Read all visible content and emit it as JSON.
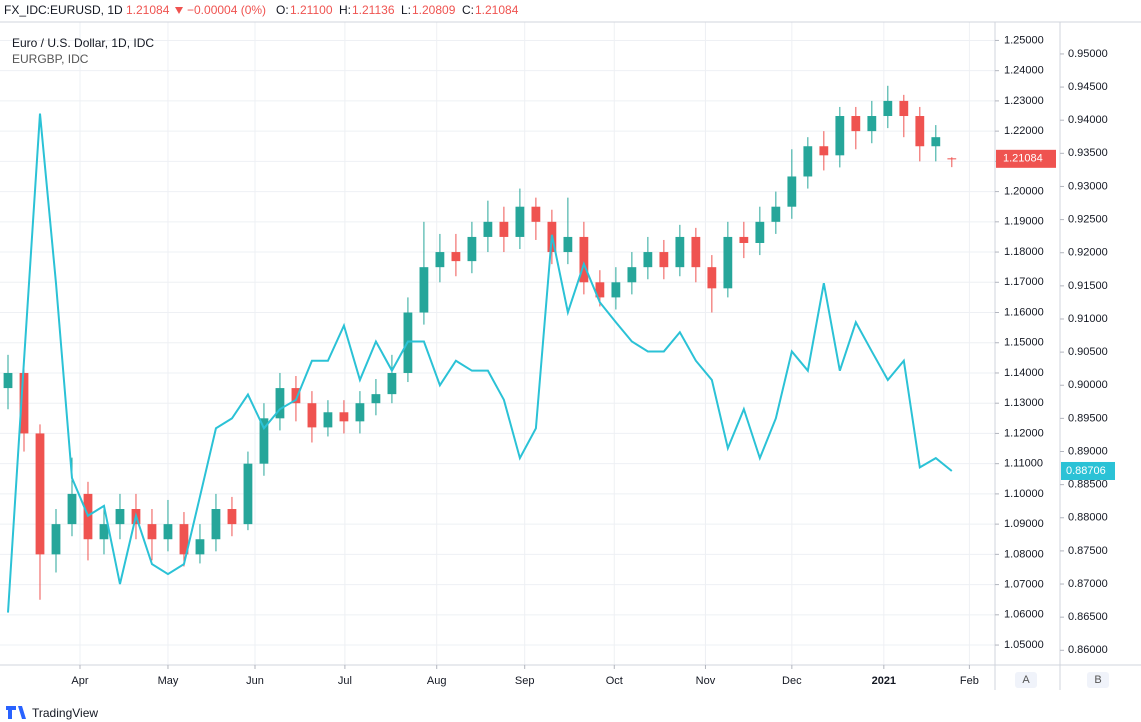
{
  "header": {
    "symbol": "FX_IDC:EURUSD, 1D",
    "last": "1.21084",
    "change": "−0.00004 (0%)",
    "open_label": "O:",
    "open": "1.21100",
    "high_label": "H:",
    "high": "1.21136",
    "low_label": "L:",
    "low": "1.20809",
    "close_label": "C:",
    "close": "1.21084"
  },
  "footer": {
    "brand": "TradingView"
  },
  "chart_data": {
    "type": "candlestick",
    "axis_names": [
      "A",
      "B"
    ],
    "xlim": [
      -0.5,
      61.7
    ],
    "xticks": [
      {
        "value": 4.5,
        "label": "Apr"
      },
      {
        "value": 10,
        "label": "May"
      },
      {
        "value": 15.44,
        "label": "Jun"
      },
      {
        "value": 21.06,
        "label": "Jul"
      },
      {
        "value": 26.8,
        "label": "Aug"
      },
      {
        "value": 32.3,
        "label": "Sep"
      },
      {
        "value": 37.9,
        "label": "Oct"
      },
      {
        "value": 43.6,
        "label": "Nov"
      },
      {
        "value": 49,
        "label": "Dec"
      },
      {
        "value": 54.75,
        "label": "2021"
      },
      {
        "value": 60.1,
        "label": "Feb"
      }
    ],
    "ylim": [
      1.0434,
      1.2561
    ],
    "yticks": [
      {
        "value": 1.05,
        "label": "1.05000"
      },
      {
        "value": 1.06,
        "label": "1.06000"
      },
      {
        "value": 1.07,
        "label": "1.07000"
      },
      {
        "value": 1.08,
        "label": "1.08000"
      },
      {
        "value": 1.09,
        "label": "1.09000"
      },
      {
        "value": 1.1,
        "label": "1.10000"
      },
      {
        "value": 1.11,
        "label": "1.11000"
      },
      {
        "value": 1.12,
        "label": "1.12000"
      },
      {
        "value": 1.13,
        "label": "1.13000"
      },
      {
        "value": 1.14,
        "label": "1.14000"
      },
      {
        "value": 1.15,
        "label": "1.15000"
      },
      {
        "value": 1.16,
        "label": "1.16000"
      },
      {
        "value": 1.17,
        "label": "1.17000"
      },
      {
        "value": 1.18,
        "label": "1.18000"
      },
      {
        "value": 1.19,
        "label": "1.19000"
      },
      {
        "value": 1.2,
        "label": "1.20000"
      },
      {
        "value": 1.21,
        "label": "1.21000"
      },
      {
        "value": 1.22,
        "label": "1.22000"
      },
      {
        "value": 1.23,
        "label": "1.23000"
      },
      {
        "value": 1.24,
        "label": "1.24000"
      },
      {
        "value": 1.25,
        "label": "1.25000"
      }
    ],
    "y2lim": [
      0.85778,
      0.95482
    ],
    "y2ticks": [
      {
        "value": 0.86,
        "label": "0.86000"
      },
      {
        "value": 0.865,
        "label": "0.86500"
      },
      {
        "value": 0.87,
        "label": "0.87000"
      },
      {
        "value": 0.875,
        "label": "0.87500"
      },
      {
        "value": 0.88,
        "label": "0.88000"
      },
      {
        "value": 0.885,
        "label": "0.88500"
      },
      {
        "value": 0.89,
        "label": "0.89000"
      },
      {
        "value": 0.895,
        "label": "0.89500"
      },
      {
        "value": 0.9,
        "label": "0.90000"
      },
      {
        "value": 0.905,
        "label": "0.90500"
      },
      {
        "value": 0.91,
        "label": "0.91000"
      },
      {
        "value": 0.915,
        "label": "0.91500"
      },
      {
        "value": 0.92,
        "label": "0.92000"
      },
      {
        "value": 0.925,
        "label": "0.92500"
      },
      {
        "value": 0.93,
        "label": "0.93000"
      },
      {
        "value": 0.935,
        "label": "0.93500"
      },
      {
        "value": 0.94,
        "label": "0.94000"
      },
      {
        "value": 0.945,
        "label": "0.94500"
      },
      {
        "value": 0.95,
        "label": "0.95000"
      }
    ],
    "grid": true,
    "series": [
      {
        "name": "Euro / U.S. Dollar, 1D, IDC",
        "up_color": "#26a69a",
        "down_color": "#ef5350",
        "open": [
          1.135,
          1.14,
          1.12,
          1.08,
          1.09,
          1.1,
          1.085,
          1.09,
          1.095,
          1.09,
          1.085,
          1.09,
          1.08,
          1.085,
          1.095,
          1.09,
          1.11,
          1.125,
          1.135,
          1.13,
          1.122,
          1.127,
          1.124,
          1.13,
          1.133,
          1.14,
          1.16,
          1.175,
          1.18,
          1.177,
          1.185,
          1.19,
          1.185,
          1.195,
          1.19,
          1.18,
          1.185,
          1.17,
          1.165,
          1.17,
          1.175,
          1.18,
          1.175,
          1.185,
          1.175,
          1.168,
          1.185,
          1.183,
          1.19,
          1.195,
          1.205,
          1.215,
          1.212,
          1.225,
          1.22,
          1.225,
          1.23,
          1.225,
          1.215,
          1.211
        ],
        "high": [
          1.146,
          1.145,
          1.123,
          1.095,
          1.112,
          1.104,
          1.096,
          1.1,
          1.1,
          1.095,
          1.098,
          1.094,
          1.09,
          1.1,
          1.099,
          1.114,
          1.13,
          1.14,
          1.139,
          1.134,
          1.131,
          1.131,
          1.134,
          1.138,
          1.146,
          1.165,
          1.19,
          1.186,
          1.186,
          1.19,
          1.197,
          1.195,
          1.201,
          1.198,
          1.194,
          1.198,
          1.19,
          1.174,
          1.175,
          1.18,
          1.185,
          1.184,
          1.189,
          1.188,
          1.179,
          1.19,
          1.19,
          1.195,
          1.2,
          1.214,
          1.218,
          1.22,
          1.228,
          1.228,
          1.23,
          1.235,
          1.232,
          1.228,
          1.222,
          1.21136
        ],
        "low": [
          1.128,
          1.114,
          1.065,
          1.074,
          1.086,
          1.078,
          1.08,
          1.085,
          1.085,
          1.078,
          1.081,
          1.076,
          1.077,
          1.081,
          1.086,
          1.088,
          1.106,
          1.121,
          1.124,
          1.117,
          1.119,
          1.12,
          1.12,
          1.126,
          1.13,
          1.137,
          1.156,
          1.17,
          1.172,
          1.173,
          1.18,
          1.18,
          1.181,
          1.184,
          1.176,
          1.176,
          1.166,
          1.162,
          1.161,
          1.166,
          1.171,
          1.171,
          1.172,
          1.17,
          1.16,
          1.165,
          1.178,
          1.179,
          1.186,
          1.191,
          1.201,
          1.207,
          1.208,
          1.214,
          1.216,
          1.221,
          1.218,
          1.21,
          1.21,
          1.20809
        ],
        "close": [
          1.14,
          1.12,
          1.08,
          1.09,
          1.1,
          1.085,
          1.09,
          1.095,
          1.09,
          1.085,
          1.09,
          1.08,
          1.085,
          1.095,
          1.09,
          1.11,
          1.125,
          1.135,
          1.13,
          1.122,
          1.127,
          1.124,
          1.13,
          1.133,
          1.14,
          1.16,
          1.175,
          1.18,
          1.177,
          1.185,
          1.19,
          1.185,
          1.195,
          1.19,
          1.18,
          1.185,
          1.17,
          1.165,
          1.17,
          1.175,
          1.18,
          1.175,
          1.185,
          1.175,
          1.168,
          1.185,
          1.183,
          1.19,
          1.195,
          1.205,
          1.215,
          1.212,
          1.225,
          1.22,
          1.225,
          1.23,
          1.225,
          1.215,
          1.218,
          1.21084
        ]
      },
      {
        "name": "EURGBP, IDC",
        "type": "line",
        "axis": "y2",
        "color": "#2bc2d6",
        "values": [
          0.8657,
          0.9037,
          0.941,
          0.9154,
          0.886,
          0.8803,
          0.8818,
          0.87,
          0.8803,
          0.873,
          0.8715,
          0.873,
          0.8832,
          0.8935,
          0.895,
          0.8986,
          0.8935,
          0.8964,
          0.8978,
          0.9037,
          0.9037,
          0.909,
          0.9008,
          0.9066,
          0.9022,
          0.9066,
          0.9066,
          0.9,
          0.9037,
          0.9022,
          0.9022,
          0.8978,
          0.889,
          0.8935,
          0.9227,
          0.911,
          0.9183,
          0.9125,
          0.9095,
          0.9066,
          0.9051,
          0.9051,
          0.908,
          0.9037,
          0.9008,
          0.8905,
          0.8964,
          0.889,
          0.895,
          0.9051,
          0.9022,
          0.9154,
          0.9022,
          0.9095,
          0.9051,
          0.9008,
          0.9037,
          0.8876,
          0.889,
          0.88706
        ]
      }
    ]
  }
}
